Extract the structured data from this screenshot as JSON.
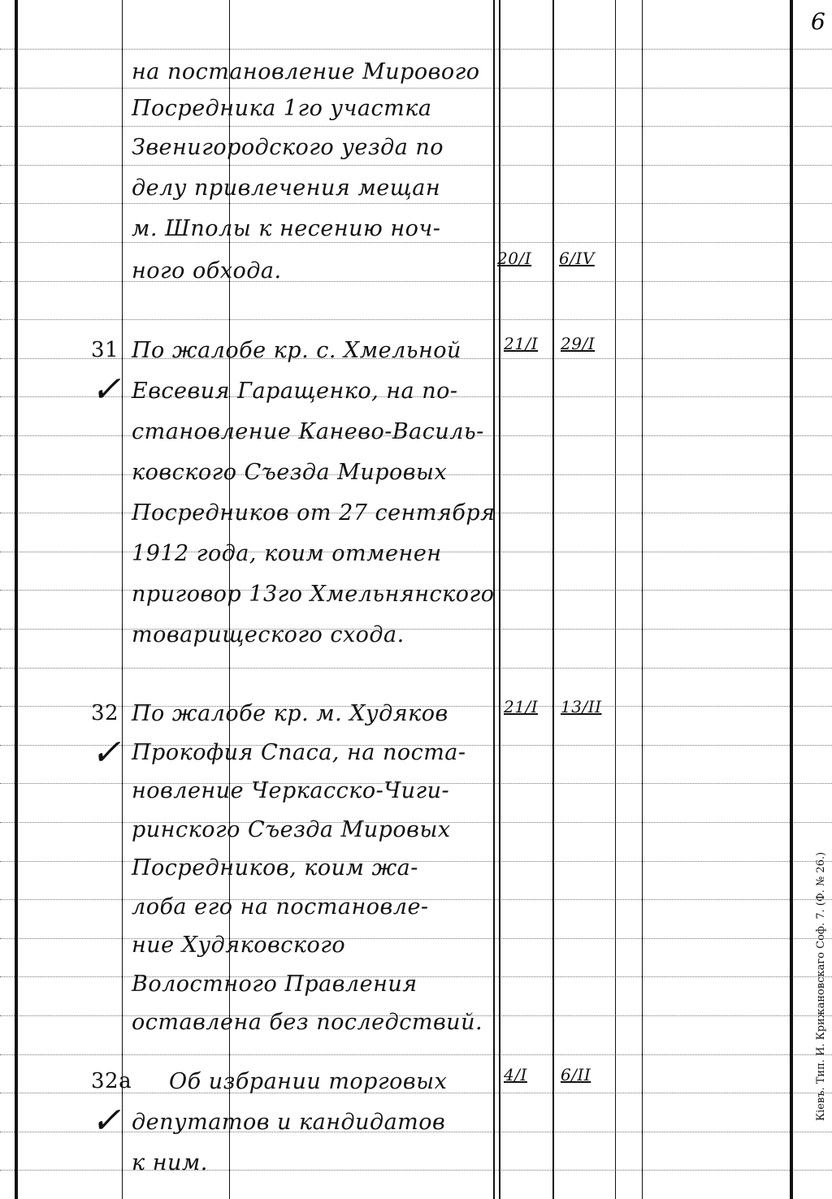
{
  "page_number": "6",
  "printer_imprint": "Кіевъ. Тип. И. Крижановскаго Соф. 7. (Ф. № 26.)",
  "continuation": {
    "lines": [
      "на постановление Мирового",
      "Посредника 1го участка",
      "Звенигородского уезда по",
      "делу привлечения мещан",
      "м. Шполы к несению ноч-",
      "ного обхода."
    ],
    "date_received": "20/I",
    "date_resolved": "6/IV"
  },
  "entries": [
    {
      "number": "31",
      "checked": true,
      "lines": [
        "По жалобе кр. с. Хмельной",
        "Евсевия Гаращенко, на по-",
        "становление Канево-Василь-",
        "ковского Съезда Мировых",
        "Посредников от 27 сентября",
        "1912 года, коим отменен",
        "приговор 13го Хмельнянского",
        "товарищеского схода."
      ],
      "date_received": "21/I",
      "date_resolved": "29/I"
    },
    {
      "number": "32",
      "checked": true,
      "lines": [
        "По жалобе кр. м. Худяков",
        "Прокофия Спаса, на поста-",
        "новление Черкасско-Чиги-",
        "ринского Съезда Мировых",
        "Посредников, коим жа-",
        "лоба его на постановле-",
        "ние Худяковского",
        "Волостного Правления",
        "оставлена без последствий."
      ],
      "date_received": "21/I",
      "date_resolved": "13/II"
    },
    {
      "number": "32а",
      "checked": true,
      "lines": [
        "Об избрании торговых",
        "депутатов и кандидатов",
        "к ним."
      ],
      "date_received": "4/I",
      "date_resolved": "6/II"
    }
  ]
}
